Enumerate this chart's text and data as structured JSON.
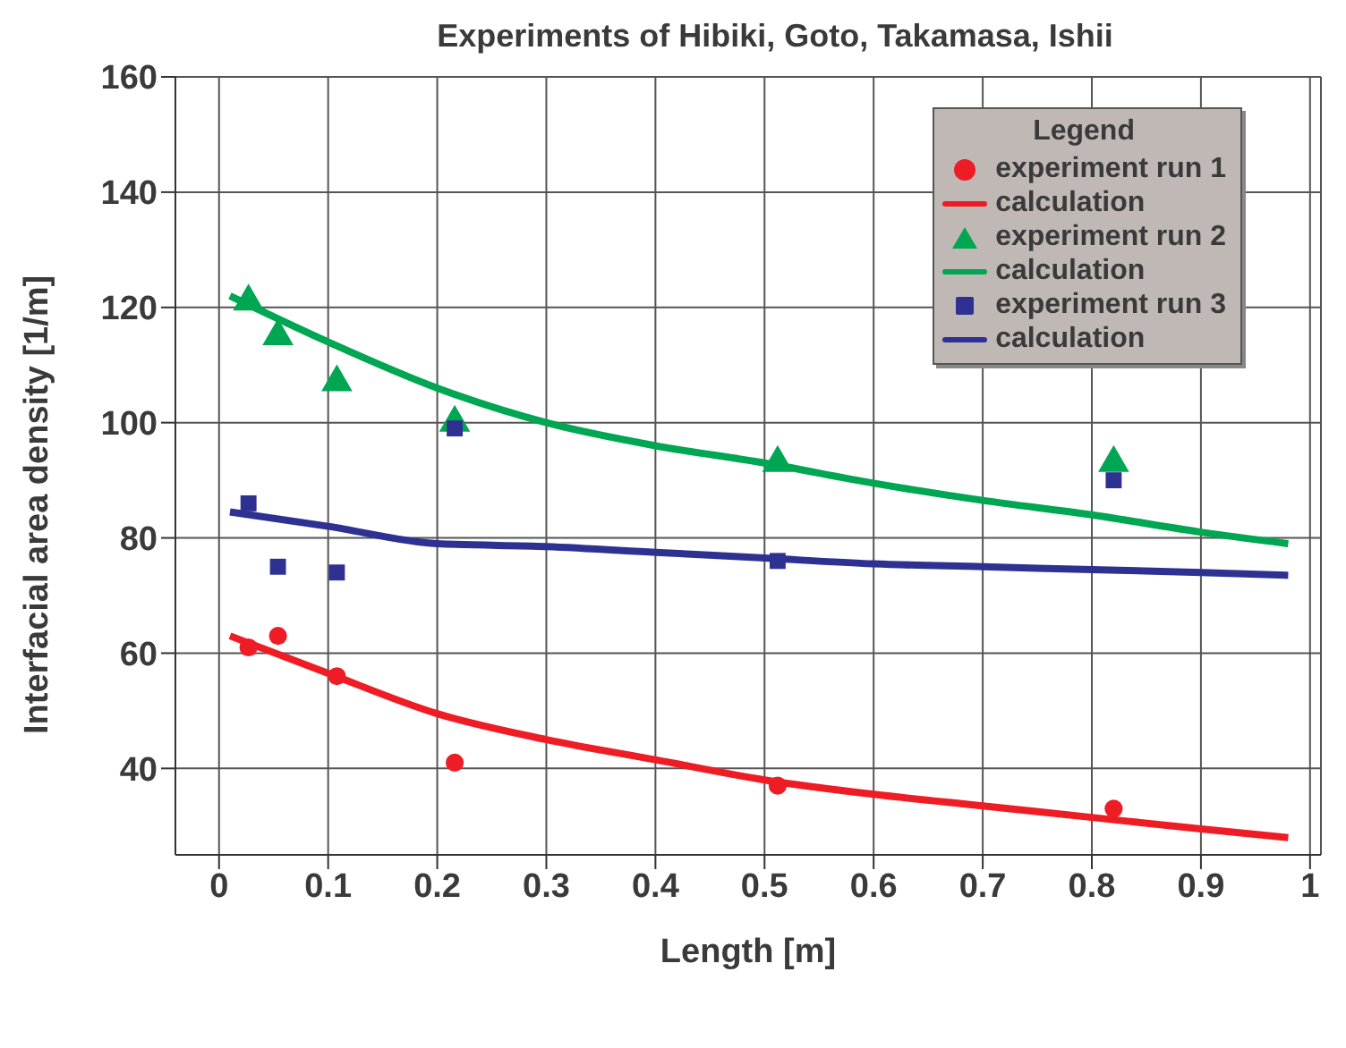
{
  "chart_data": {
    "type": "scatter",
    "title": "Experiments of Hibiki, Goto, Takamasa, Ishii",
    "xlabel": "Length [m]",
    "ylabel": "Interfacial area density [1/m]",
    "legend_title": "Legend",
    "legend": "top right",
    "grid": true,
    "xlim": [
      -0.04,
      1.01
    ],
    "xticks": [
      0,
      0.1,
      0.2,
      0.3,
      0.4,
      0.5,
      0.6,
      0.7,
      0.8,
      0.9,
      1
    ],
    "ylim": [
      25,
      160
    ],
    "yticks": [
      40,
      60,
      80,
      100,
      120,
      140,
      160
    ],
    "series": [
      {
        "name": "experiment run 1",
        "marker": "circle",
        "color": "#ee1c25",
        "x": [
          0.027,
          0.054,
          0.108,
          0.216,
          0.512,
          0.82
        ],
        "values": [
          61,
          63,
          56,
          41,
          37,
          33
        ]
      },
      {
        "name": "calculation",
        "type": "line",
        "marker": "none",
        "color": "#ee1c25",
        "x": [
          0.01,
          0.1,
          0.2,
          0.3,
          0.4,
          0.5,
          0.6,
          0.7,
          0.8,
          0.9,
          0.98
        ],
        "values": [
          63,
          56.5,
          49.5,
          45,
          41.5,
          38,
          35.5,
          33.5,
          31.5,
          29.5,
          28
        ]
      },
      {
        "name": "experiment run 2",
        "marker": "triangle",
        "color": "#00a651",
        "x": [
          0.027,
          0.054,
          0.108,
          0.216,
          0.512,
          0.82
        ],
        "values": [
          121,
          115,
          107,
          100,
          93,
          93
        ]
      },
      {
        "name": "calculation",
        "type": "line",
        "marker": "none",
        "color": "#00a651",
        "x": [
          0.01,
          0.1,
          0.2,
          0.3,
          0.4,
          0.5,
          0.6,
          0.7,
          0.8,
          0.9,
          0.98
        ],
        "values": [
          122,
          114,
          106,
          100,
          96,
          93,
          89.5,
          86.5,
          84,
          81,
          79
        ]
      },
      {
        "name": "experiment run 3",
        "marker": "square",
        "color": "#2e3192",
        "x": [
          0.027,
          0.054,
          0.108,
          0.216,
          0.512,
          0.82
        ],
        "values": [
          86,
          75,
          74,
          99,
          76,
          90
        ]
      },
      {
        "name": "calculation",
        "type": "line",
        "marker": "none",
        "color": "#2e3192",
        "x": [
          0.01,
          0.1,
          0.2,
          0.3,
          0.4,
          0.5,
          0.6,
          0.7,
          0.8,
          0.9,
          0.98
        ],
        "values": [
          84.5,
          82,
          79,
          78.5,
          77.5,
          76.5,
          75.5,
          75,
          74.5,
          74,
          73.5
        ]
      }
    ]
  }
}
